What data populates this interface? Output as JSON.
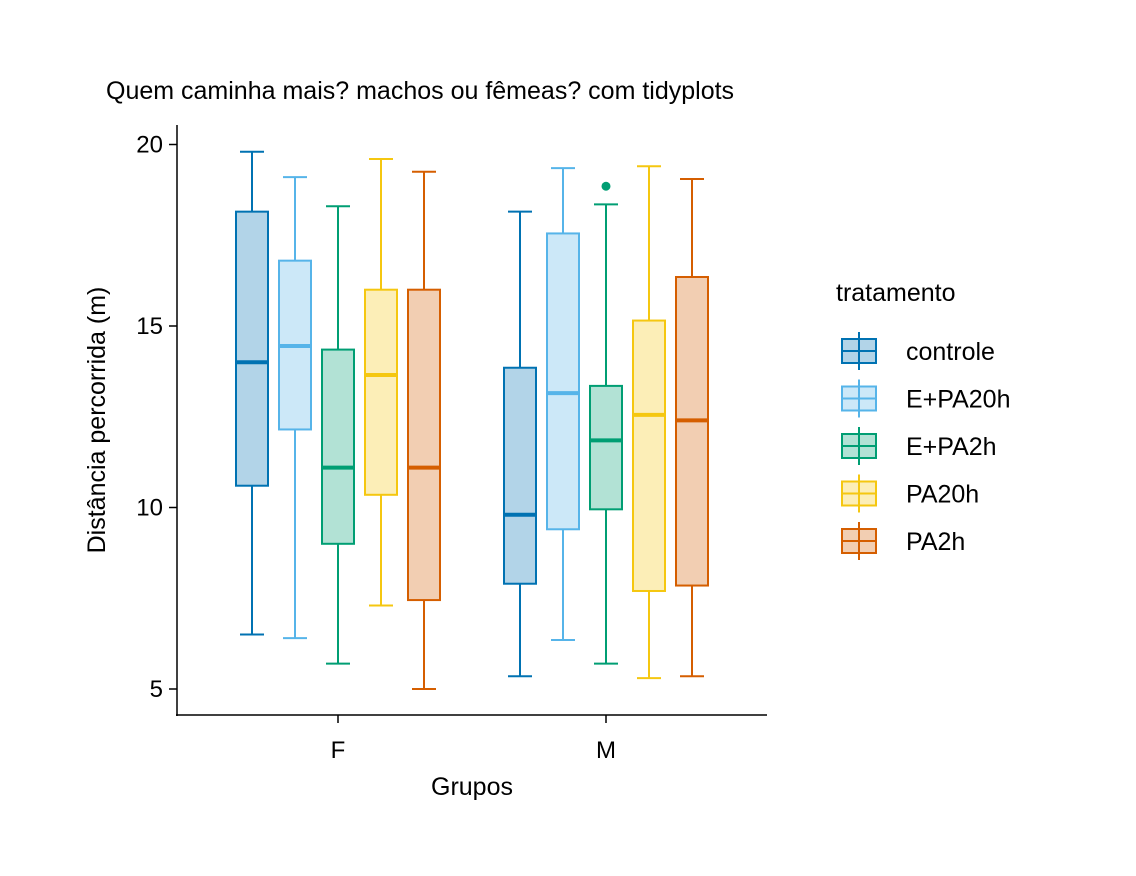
{
  "chart_data": {
    "type": "box",
    "title": "Quem caminha mais? machos ou fêmeas? com tidyplots",
    "xlabel": "Grupos",
    "ylabel": "Distância percorrida (m)",
    "ylim": [
      4.3,
      20.5
    ],
    "yticks": [
      5,
      10,
      15,
      20
    ],
    "categories": [
      "F",
      "M"
    ],
    "grid": false,
    "legend": {
      "title": "tratamento",
      "position": "right"
    },
    "series": [
      {
        "name": "controle",
        "color": "#0072B2",
        "boxes": [
          {
            "category": "F",
            "min": 6.5,
            "q1": 10.6,
            "median": 14.0,
            "q3": 18.15,
            "max": 19.8,
            "outliers": []
          },
          {
            "category": "M",
            "min": 5.35,
            "q1": 7.9,
            "median": 9.8,
            "q3": 13.85,
            "max": 18.15,
            "outliers": []
          }
        ]
      },
      {
        "name": "E+PA20h",
        "color": "#56B4E9",
        "boxes": [
          {
            "category": "F",
            "min": 6.4,
            "q1": 12.15,
            "median": 14.45,
            "q3": 16.8,
            "max": 19.1,
            "outliers": []
          },
          {
            "category": "M",
            "min": 6.35,
            "q1": 9.4,
            "median": 13.15,
            "q3": 17.55,
            "max": 19.35,
            "outliers": []
          }
        ]
      },
      {
        "name": "E+PA2h",
        "color": "#009E73",
        "boxes": [
          {
            "category": "F",
            "min": 5.7,
            "q1": 9.0,
            "median": 11.1,
            "q3": 14.35,
            "max": 18.3,
            "outliers": []
          },
          {
            "category": "M",
            "min": 5.7,
            "q1": 9.95,
            "median": 11.85,
            "q3": 13.35,
            "max": 18.35,
            "outliers": [
              18.85
            ]
          }
        ]
      },
      {
        "name": "PA20h",
        "color": "#F5C710",
        "boxes": [
          {
            "category": "F",
            "min": 7.3,
            "q1": 10.35,
            "median": 13.65,
            "q3": 16.0,
            "max": 19.6,
            "outliers": []
          },
          {
            "category": "M",
            "min": 5.3,
            "q1": 7.7,
            "median": 12.55,
            "q3": 15.15,
            "max": 19.4,
            "outliers": []
          }
        ]
      },
      {
        "name": "PA2h",
        "color": "#D55E00",
        "boxes": [
          {
            "category": "F",
            "min": 5.0,
            "q1": 7.45,
            "median": 11.1,
            "q3": 16.0,
            "max": 19.25,
            "outliers": []
          },
          {
            "category": "M",
            "min": 5.35,
            "q1": 7.85,
            "median": 12.4,
            "q3": 16.35,
            "max": 19.05,
            "outliers": []
          }
        ]
      }
    ]
  }
}
